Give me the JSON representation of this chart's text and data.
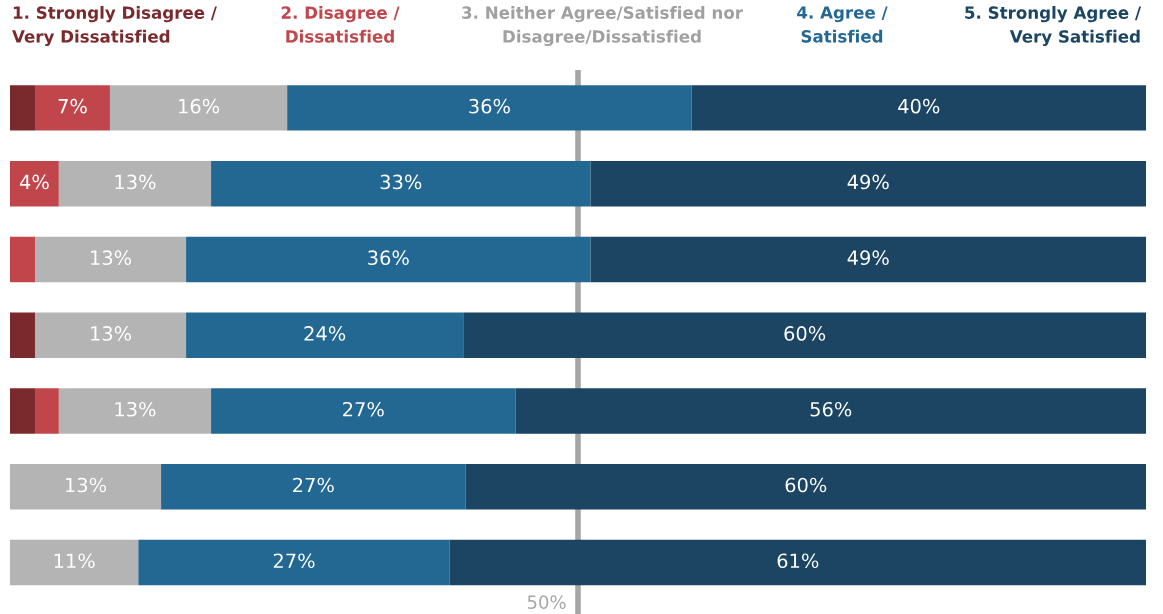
{
  "chart_data": {
    "type": "bar",
    "orientation": "horizontal",
    "stacked": true,
    "categories": [
      null,
      null,
      null,
      null,
      null,
      null,
      null
    ],
    "xlim": [
      0,
      100
    ],
    "legend": "top",
    "series": [
      {
        "name": "1. Strongly Disagree /\nVery Dissatisfied",
        "color": "#7a2a2d",
        "values": [
          2.2,
          0,
          0,
          2.2,
          2.2,
          0,
          0
        ],
        "value_labels": [
          null,
          null,
          null,
          null,
          null,
          null,
          null
        ]
      },
      {
        "name": "2. Disagree /\nDissatisfied",
        "color": "#c0464b",
        "values": [
          6.6,
          4.3,
          2.2,
          0,
          2.1,
          0,
          0
        ],
        "value_labels": [
          "7%",
          "4%",
          null,
          null,
          null,
          null,
          null
        ]
      },
      {
        "name": "3. Neither Agree/Satisfied nor\nDisagree/Dissatisfied",
        "color": "#b4b4b4",
        "values": [
          15.6,
          13.4,
          13.3,
          13.3,
          13.4,
          13.3,
          11.3
        ],
        "value_labels": [
          "16%",
          "13%",
          "13%",
          "13%",
          "13%",
          "13%",
          "11%"
        ]
      },
      {
        "name": "4. Agree /\nSatisfied",
        "color": "#236892",
        "values": [
          35.6,
          33.4,
          35.6,
          24.4,
          26.8,
          26.8,
          27.4
        ],
        "value_labels": [
          "36%",
          "33%",
          "36%",
          "24%",
          "27%",
          "27%",
          "27%"
        ]
      },
      {
        "name": "5. Strongly Agree /\nVery Satisfied",
        "color": "#1b4563",
        "values": [
          40.0,
          48.9,
          48.9,
          60.1,
          55.5,
          59.9,
          61.3
        ],
        "value_labels": [
          "40%",
          "49%",
          "49%",
          "60%",
          "56%",
          "60%",
          "61%"
        ]
      }
    ],
    "ref_lines": [
      {
        "axis": "x",
        "value": 50,
        "label": "50%",
        "color": "#a6a6a6"
      }
    ]
  }
}
